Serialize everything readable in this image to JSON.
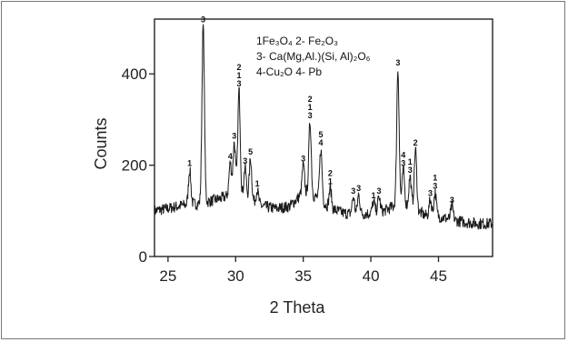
{
  "chart_data": {
    "type": "line",
    "title": "",
    "xlabel": "2 Theta",
    "ylabel": "Counts",
    "xlim": [
      24,
      49
    ],
    "ylim": [
      0,
      520
    ],
    "x_ticks": [
      25,
      30,
      35,
      40,
      45
    ],
    "y_ticks": [
      0,
      200,
      400
    ],
    "grid": false,
    "legend_placement": "top-center",
    "legend_lines": [
      "1Fe₃O₄  2- Fe₂O₃",
      "3- Ca(Mg,Al.)(Si, Al)₂O₆",
      "4-Cu₂O 4- Pb"
    ],
    "series": [
      {
        "baseline": [
          [
            24.0,
            100
          ],
          [
            25.0,
            105
          ],
          [
            26.0,
            112
          ],
          [
            27.0,
            115
          ],
          [
            28.0,
            120
          ],
          [
            29.0,
            128
          ],
          [
            30.0,
            140
          ],
          [
            31.0,
            125
          ],
          [
            32.0,
            110
          ],
          [
            33.0,
            105
          ],
          [
            34.0,
            110
          ],
          [
            35.0,
            140
          ],
          [
            36.0,
            130
          ],
          [
            37.0,
            105
          ],
          [
            38.0,
            95
          ],
          [
            39.0,
            92
          ],
          [
            40.0,
            95
          ],
          [
            41.0,
            100
          ],
          [
            42.0,
            115
          ],
          [
            43.0,
            108
          ],
          [
            44.0,
            90
          ],
          [
            45.0,
            88
          ],
          [
            46.0,
            80
          ],
          [
            47.0,
            75
          ],
          [
            48.0,
            72
          ],
          [
            49.0,
            72
          ]
        ],
        "peaks": [
          {
            "x": 26.6,
            "y": 190,
            "label": "1"
          },
          {
            "x": 27.6,
            "y": 505,
            "label": "3"
          },
          {
            "x": 29.6,
            "y": 205,
            "label": "4"
          },
          {
            "x": 29.9,
            "y": 250,
            "label": "3"
          },
          {
            "x": 30.25,
            "y": 365,
            "label": "2\n1\n3"
          },
          {
            "x": 30.7,
            "y": 195,
            "label": "3"
          },
          {
            "x": 31.1,
            "y": 215,
            "label": "5"
          },
          {
            "x": 31.6,
            "y": 145,
            "label": "1"
          },
          {
            "x": 35.0,
            "y": 200,
            "label": "3"
          },
          {
            "x": 35.5,
            "y": 295,
            "label": "2\n1\n3"
          },
          {
            "x": 36.3,
            "y": 235,
            "label": "5\n4"
          },
          {
            "x": 37.0,
            "y": 150,
            "label": "2\n1"
          },
          {
            "x": 38.7,
            "y": 130,
            "label": "3"
          },
          {
            "x": 39.1,
            "y": 135,
            "label": "3"
          },
          {
            "x": 40.2,
            "y": 120,
            "label": "1"
          },
          {
            "x": 40.6,
            "y": 130,
            "label": "3"
          },
          {
            "x": 42.0,
            "y": 410,
            "label": "3"
          },
          {
            "x": 42.4,
            "y": 190,
            "label": "4\n3"
          },
          {
            "x": 42.9,
            "y": 175,
            "label": "1\n3"
          },
          {
            "x": 43.3,
            "y": 235,
            "label": "2"
          },
          {
            "x": 44.4,
            "y": 125,
            "label": "3"
          },
          {
            "x": 44.75,
            "y": 140,
            "label": "1\n3"
          },
          {
            "x": 46.0,
            "y": 110,
            "label": "3"
          }
        ]
      }
    ]
  }
}
